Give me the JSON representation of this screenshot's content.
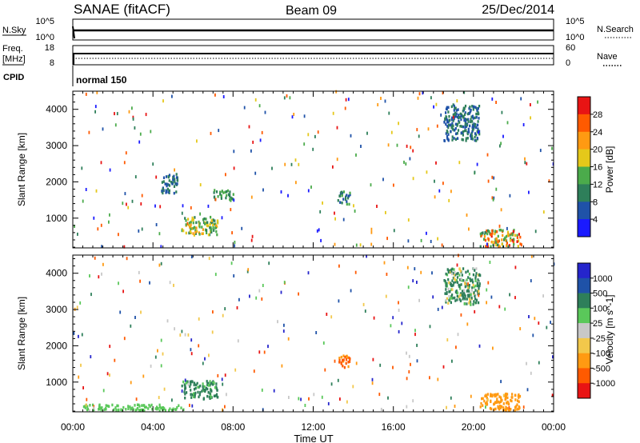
{
  "header": {
    "station": "SANAE (fitACF)",
    "beam": "Beam 09",
    "date": "25/Dec/2014"
  },
  "strip": {
    "nsky_label": "N.Sky",
    "nsearch_label": "N.Search",
    "noise_ticks": [
      "10^5",
      "10^0"
    ],
    "freq_label_1": "Freq.",
    "freq_label_2": "[MHz]",
    "freq_ticks": [
      "18",
      "8"
    ],
    "nave_label": "Nave",
    "nave_ticks": [
      "60",
      "0"
    ],
    "cpid_label": "CPID",
    "cpid_value": "normal 150"
  },
  "x_axis": {
    "label": "Time UT",
    "ticks": [
      "00:00",
      "04:00",
      "08:00",
      "12:00",
      "16:00",
      "20:00",
      "00:00"
    ]
  },
  "colors": {
    "power": [
      "#1a1aff",
      "#1f52a8",
      "#2e7f5a",
      "#4bab4b",
      "#e5c81a",
      "#ff9a12",
      "#ff5a00",
      "#e81414"
    ],
    "velocity": [
      "#e81414",
      "#ff5a00",
      "#ff9a12",
      "#f2c84b",
      "#c8c8c8",
      "#5ac85a",
      "#2e7f5a",
      "#1f52a8",
      "#2525cc"
    ]
  },
  "chart_data": [
    {
      "type": "heatmap",
      "title": "Power",
      "xlabel": "Time UT",
      "ylabel": "Slant Range [km]",
      "xlim": [
        0,
        24
      ],
      "ylim": [
        180,
        4500
      ],
      "y_ticks": [
        1000,
        2000,
        3000,
        4000
      ],
      "colorbar": {
        "label": "Power [dB]",
        "ticks": [
          "4",
          "8",
          "12",
          "16",
          "20",
          "24",
          "28"
        ],
        "range": [
          0,
          32
        ]
      },
      "echo_regions": [
        {
          "t0": 5.4,
          "t1": 7.2,
          "r0": 500,
          "r1": 1000,
          "v0": 8,
          "v1": 22
        },
        {
          "t0": 4.4,
          "t1": 5.2,
          "r0": 1650,
          "r1": 2200,
          "v0": 4,
          "v1": 12
        },
        {
          "t0": 7.0,
          "t1": 8.0,
          "r0": 1450,
          "r1": 1750,
          "v0": 8,
          "v1": 16
        },
        {
          "t0": 13.2,
          "t1": 13.8,
          "r0": 1350,
          "r1": 1700,
          "v0": 4,
          "v1": 14
        },
        {
          "t0": 18.5,
          "t1": 20.3,
          "r0": 3100,
          "r1": 4100,
          "v0": 4,
          "v1": 12
        },
        {
          "t0": 20.3,
          "t1": 22.3,
          "r0": 180,
          "r1": 650,
          "v0": 8,
          "v1": 30
        }
      ]
    },
    {
      "type": "heatmap",
      "title": "Velocity",
      "xlabel": "Time UT",
      "ylabel": "Slant Range [km]",
      "xlim": [
        0,
        24
      ],
      "ylim": [
        180,
        4500
      ],
      "y_ticks": [
        1000,
        2000,
        3000,
        4000
      ],
      "colorbar": {
        "label": "Velocity [m s^-1]",
        "ticks": [
          "1000",
          "500",
          "100",
          "25",
          "-25",
          "-100",
          "-500",
          "-1000"
        ]
      },
      "echo_regions": [
        {
          "t0": 5.4,
          "t1": 7.2,
          "r0": 500,
          "r1": 1000,
          "v0": 25,
          "v1": 500
        },
        {
          "t0": 13.2,
          "t1": 13.8,
          "r0": 1350,
          "r1": 1700,
          "v0": -1000,
          "v1": -100
        },
        {
          "t0": 20.3,
          "t1": 22.3,
          "r0": 180,
          "r1": 650,
          "v0": -500,
          "v1": -100
        },
        {
          "t0": 0.5,
          "t1": 5.5,
          "r0": 180,
          "r1": 350,
          "v0": 25,
          "v1": 100
        },
        {
          "t0": 18.5,
          "t1": 20.3,
          "r0": 3100,
          "r1": 4100,
          "v0": -100,
          "v1": 500
        }
      ]
    }
  ]
}
